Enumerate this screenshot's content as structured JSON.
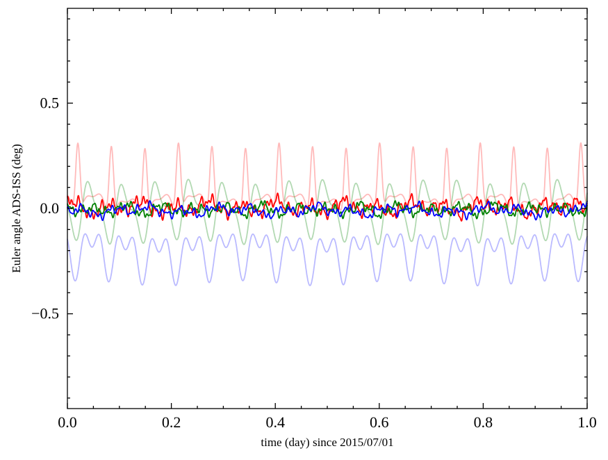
{
  "figure": {
    "background": "#ffffff",
    "frame_color": "#000000"
  },
  "chart_data": {
    "type": "line",
    "title": "",
    "xlabel": "time (day) since 2015/07/01",
    "ylabel": "Euler angle ADS-ISS (deg)",
    "xlim": [
      0.0,
      1.0
    ],
    "ylim": [
      -0.95,
      0.95
    ],
    "grid": false,
    "legend": "none",
    "xticks": {
      "values": [
        0.0,
        0.2,
        0.4,
        0.6,
        0.8,
        1.0
      ],
      "labels": [
        "0.0",
        "0.2",
        "0.4",
        "0.6",
        "0.8",
        "1.0"
      ]
    },
    "yticks": {
      "values": [
        0.5,
        0.0,
        -0.5
      ],
      "labels": [
        "0.5",
        "0.0",
        "−0.5"
      ]
    },
    "x_minor_step": 0.05,
    "y_minor_step": 0.1,
    "samples_per_series": 1600,
    "series": [
      {
        "name": "light-red",
        "color": "#ff0000",
        "opacity": 0.27,
        "line_width": 1.8,
        "base": 0.02,
        "terms": [
          {
            "type": "pulse",
            "amp": 0.34,
            "freq": 15.5,
            "phase": -0.38,
            "power": 6
          },
          {
            "type": "sin",
            "amp": 0.045,
            "freq": 15.5,
            "phase": 2.76
          },
          {
            "type": "sin",
            "amp": 0.02,
            "freq": 31.0,
            "phase": 1.2
          },
          {
            "type": "sin",
            "amp": 0.015,
            "freq": 5.2,
            "phase": 0.5
          }
        ]
      },
      {
        "name": "light-green",
        "color": "#008000",
        "opacity": 0.3,
        "line_width": 1.8,
        "base": -0.01,
        "terms": [
          {
            "type": "sin",
            "amp": 0.115,
            "freq": 15.5,
            "phase": -2.81
          },
          {
            "type": "sin",
            "amp": 0.05,
            "freq": 31.0,
            "phase": 0.9
          },
          {
            "type": "sin",
            "amp": 0.012,
            "freq": 4.1,
            "phase": 2.0
          }
        ]
      },
      {
        "name": "light-blue",
        "color": "#0000ff",
        "opacity": 0.27,
        "line_width": 1.8,
        "base": -0.21,
        "terms": [
          {
            "type": "sin",
            "amp": 0.08,
            "freq": 15.5,
            "phase": -3.03
          },
          {
            "type": "sin",
            "amp": 0.065,
            "freq": 31.0,
            "phase": 1.79
          },
          {
            "type": "sin",
            "amp": 0.012,
            "freq": 3.3,
            "phase": 0.9
          }
        ]
      },
      {
        "name": "red",
        "color": "#ff0000",
        "opacity": 1.0,
        "line_width": 1.8,
        "base": 0.005,
        "terms": [
          {
            "type": "sin",
            "amp": 0.022,
            "freq": 15.5,
            "phase": 0.3
          },
          {
            "type": "sin",
            "amp": 0.018,
            "freq": 47.0,
            "phase": 1.1
          },
          {
            "type": "sin",
            "amp": 0.013,
            "freq": 89.0,
            "phase": 2.2
          },
          {
            "type": "sin",
            "amp": 0.009,
            "freq": 151.0,
            "phase": 0.7
          },
          {
            "type": "sin",
            "amp": 0.012,
            "freq": 7.3,
            "phase": 1.9
          }
        ]
      },
      {
        "name": "green",
        "color": "#008000",
        "opacity": 1.0,
        "line_width": 1.8,
        "base": -0.005,
        "terms": [
          {
            "type": "sin",
            "amp": 0.016,
            "freq": 15.5,
            "phase": 2.9
          },
          {
            "type": "sin",
            "amp": 0.014,
            "freq": 43.0,
            "phase": 0.2
          },
          {
            "type": "sin",
            "amp": 0.01,
            "freq": 97.0,
            "phase": 1.5
          },
          {
            "type": "sin",
            "amp": 0.008,
            "freq": 11.0,
            "phase": 0.8
          },
          {
            "type": "sin",
            "amp": 0.006,
            "freq": 163.0,
            "phase": 2.5
          }
        ]
      },
      {
        "name": "blue",
        "color": "#0000ff",
        "opacity": 1.0,
        "line_width": 1.8,
        "base": -0.01,
        "terms": [
          {
            "type": "sin",
            "amp": 0.014,
            "freq": 15.5,
            "phase": 5.1
          },
          {
            "type": "sin",
            "amp": 0.012,
            "freq": 37.0,
            "phase": 1.7
          },
          {
            "type": "sin",
            "amp": 0.01,
            "freq": 83.0,
            "phase": 0.4
          },
          {
            "type": "sin",
            "amp": 0.01,
            "freq": 5.9,
            "phase": 2.6
          },
          {
            "type": "sin",
            "amp": 0.006,
            "freq": 127.0,
            "phase": 1.2
          }
        ]
      }
    ]
  }
}
